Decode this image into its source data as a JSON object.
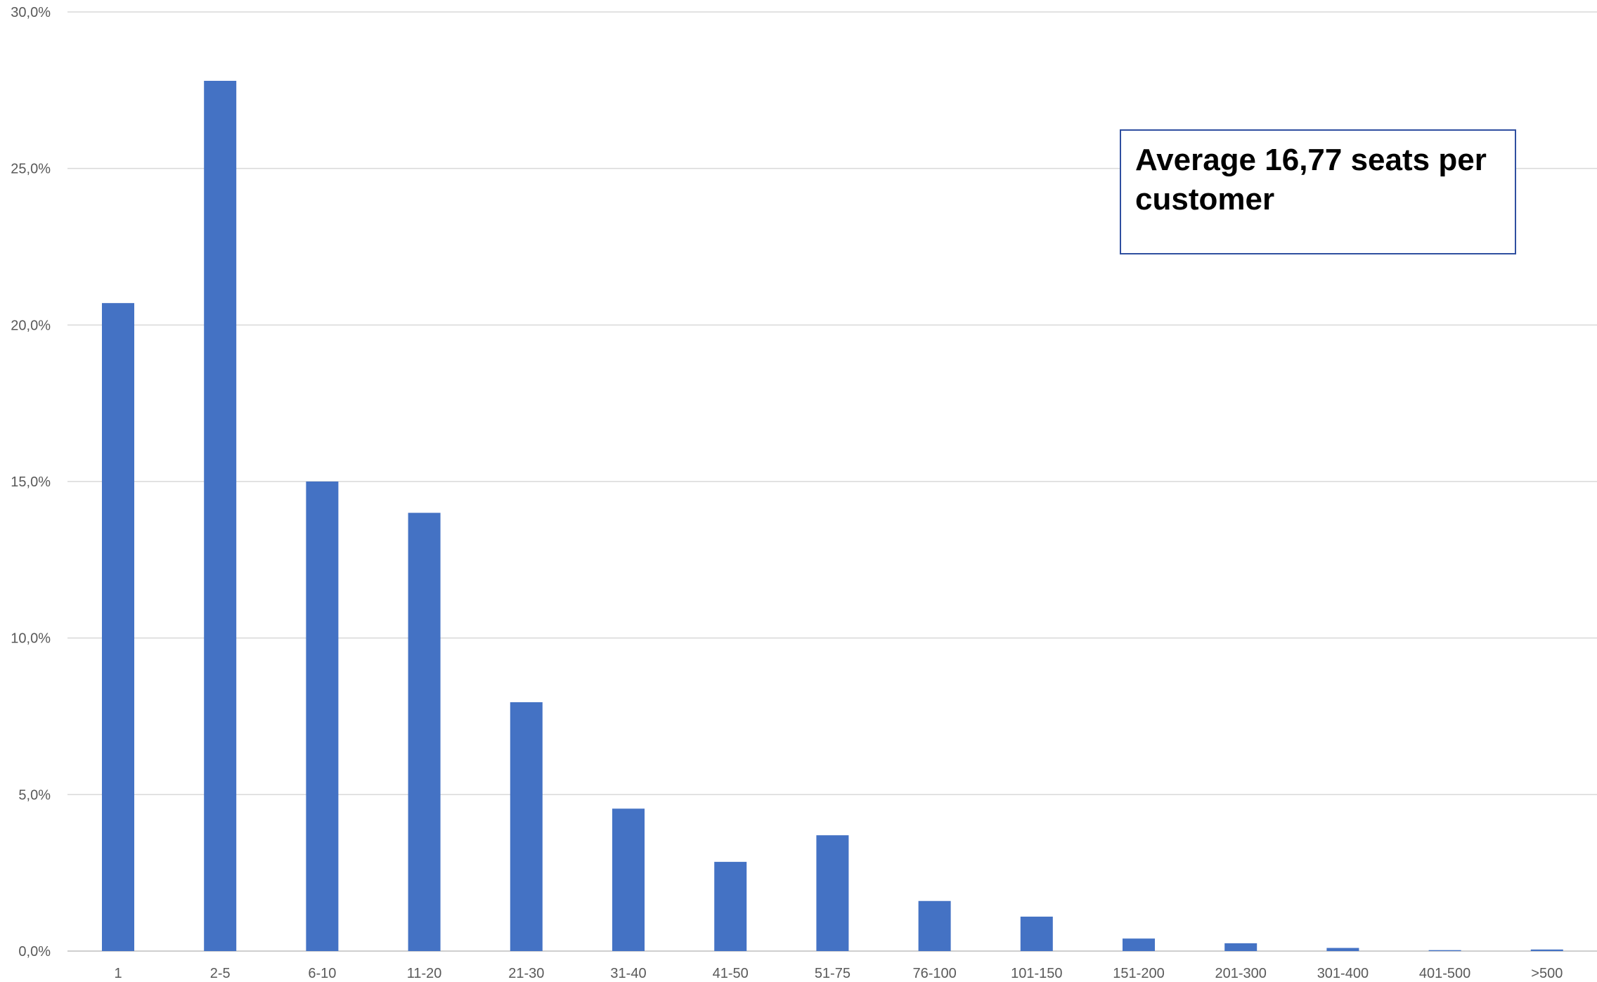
{
  "chart_data": {
    "type": "bar",
    "categories": [
      "1",
      "2-5",
      "6-10",
      "11-20",
      "21-30",
      "31-40",
      "41-50",
      "51-75",
      "76-100",
      "101-150",
      "151-200",
      "201-300",
      "301-400",
      "401-500",
      ">500"
    ],
    "values": [
      20.7,
      27.8,
      15.0,
      14.0,
      7.95,
      4.55,
      2.85,
      3.7,
      1.6,
      1.1,
      0.4,
      0.25,
      0.1,
      0.03,
      0.05
    ],
    "ylim": [
      0,
      30
    ],
    "yticks": [
      "0,0%",
      "5,0%",
      "10,0%",
      "15,0%",
      "20,0%",
      "25,0%",
      "30,0%"
    ],
    "ytick_values": [
      0,
      5,
      10,
      15,
      20,
      25,
      30
    ],
    "grid": true,
    "legend": "none",
    "bar_color": "#4472C4",
    "annotation": "Average 16,77 seats per customer"
  }
}
